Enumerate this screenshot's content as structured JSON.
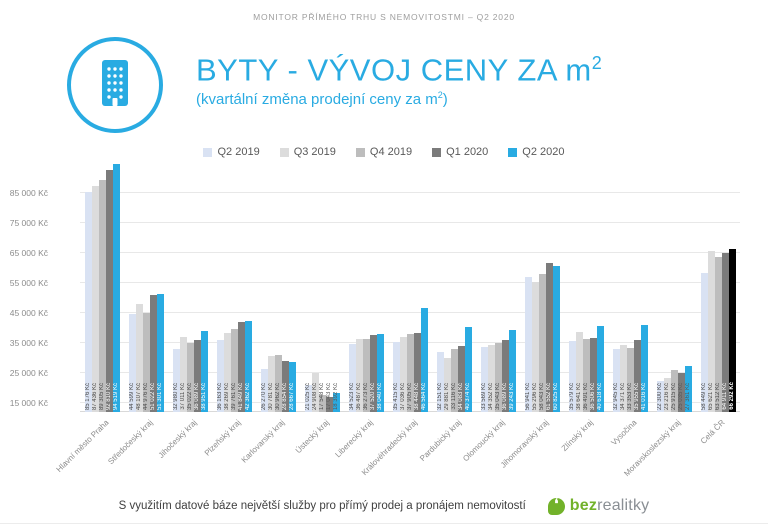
{
  "page": {
    "top_caption": "MONITOR PŘÍMÉHO TRHU S NEMOVITOSTMI – Q2 2020"
  },
  "header": {
    "title_main": "BYTY - VÝVOJ CENY ZA m",
    "title_sup": "2",
    "subtitle_main": "(kvartální změna prodejní ceny za m",
    "subtitle_sup": "2",
    "subtitle_end": ")"
  },
  "footer": {
    "text": "S využitím datové báze největší služby pro přímý prodej a pronájem nemovitostí",
    "logo_bez": "bez",
    "logo_realitky": "realitky"
  },
  "colors": {
    "accent_blue": "#29abe2",
    "brand_green": "#72b22a",
    "highlight_black": "#000000"
  },
  "chart_data": {
    "type": "bar",
    "title": "BYTY - VÝVOJ CENY ZA m2",
    "subtitle": "(kvartální změna prodejní ceny za m2)",
    "unit": "Kč",
    "grid": true,
    "legend_position": "top",
    "ylim": [
      12000,
      96000
    ],
    "y_tick_values": [
      85000,
      75000,
      65000,
      55000,
      45000,
      35000,
      25000,
      15000
    ],
    "y_tick_labels": [
      "85 000 Kč",
      "75 000 Kč",
      "65 000 Kč",
      "55 000 Kč",
      "45 000 Kč",
      "35 000 Kč",
      "25 000 Kč",
      "15 000 Kč"
    ],
    "categories": [
      "Hlavní město Praha",
      "Středočeský kraj",
      "Jihočeský kraj",
      "Plzeňský kraj",
      "Karlovarský kraj",
      "Ústecký kraj",
      "Liberecký kraj",
      "Královéhradecký kraj",
      "Pardubický kraj",
      "Olomoucký kraj",
      "Jihomoravský kraj",
      "Zlínský kraj",
      "Vysočina",
      "Moravskoslezský kraj",
      "Celá ČR"
    ],
    "series": [
      {
        "name": "Q2 2019",
        "color": "#d9e2f3",
        "label_color": "dark",
        "values": [
          85176,
          44599,
          32980,
          36163,
          26270,
          21025,
          34523,
          35415,
          32151,
          33569,
          56941,
          35579,
          32945,
          22300,
          58449
        ]
      },
      {
        "name": "Q3 2019",
        "color": "#dcdcdc",
        "label_color": "dark",
        "values": [
          87436,
          48107,
          37011,
          38269,
          30781,
          24908,
          36487,
          37036,
          29881,
          34352,
          55296,
          38641,
          34371,
          23216,
          65621
        ]
      },
      {
        "name": "Q4 2019",
        "color": "#bdbdbd",
        "label_color": "dark",
        "values": [
          89305,
          44976,
          35022,
          39761,
          30962,
          17548,
          36273,
          37905,
          33116,
          35043,
          58043,
          36491,
          33353,
          25915,
          63512
        ]
      },
      {
        "name": "Q1 2020",
        "color": "#7b7b7b",
        "label_color": "light",
        "values": [
          92810,
          51022,
          36089,
          41849,
          28854,
          17043,
          37520,
          38448,
          34083,
          36089,
          61552,
          36506,
          35955,
          25035,
          64911
        ]
      },
      {
        "name": "Q2 2020",
        "color": "#29abe2",
        "label_color": "light",
        "values": [
          94519,
          51301,
          38951,
          42362,
          28667,
          18392,
          38040,
          46564,
          40374,
          39243,
          60825,
          40618,
          41016,
          27361,
          66292
        ]
      }
    ],
    "highlight": {
      "category": "Celá ČR",
      "series": "Q2 2020",
      "color": "#000000",
      "note": "bar for whole country latest quarter drawn in black with bold label"
    },
    "value_label_suffix": " Kč"
  }
}
